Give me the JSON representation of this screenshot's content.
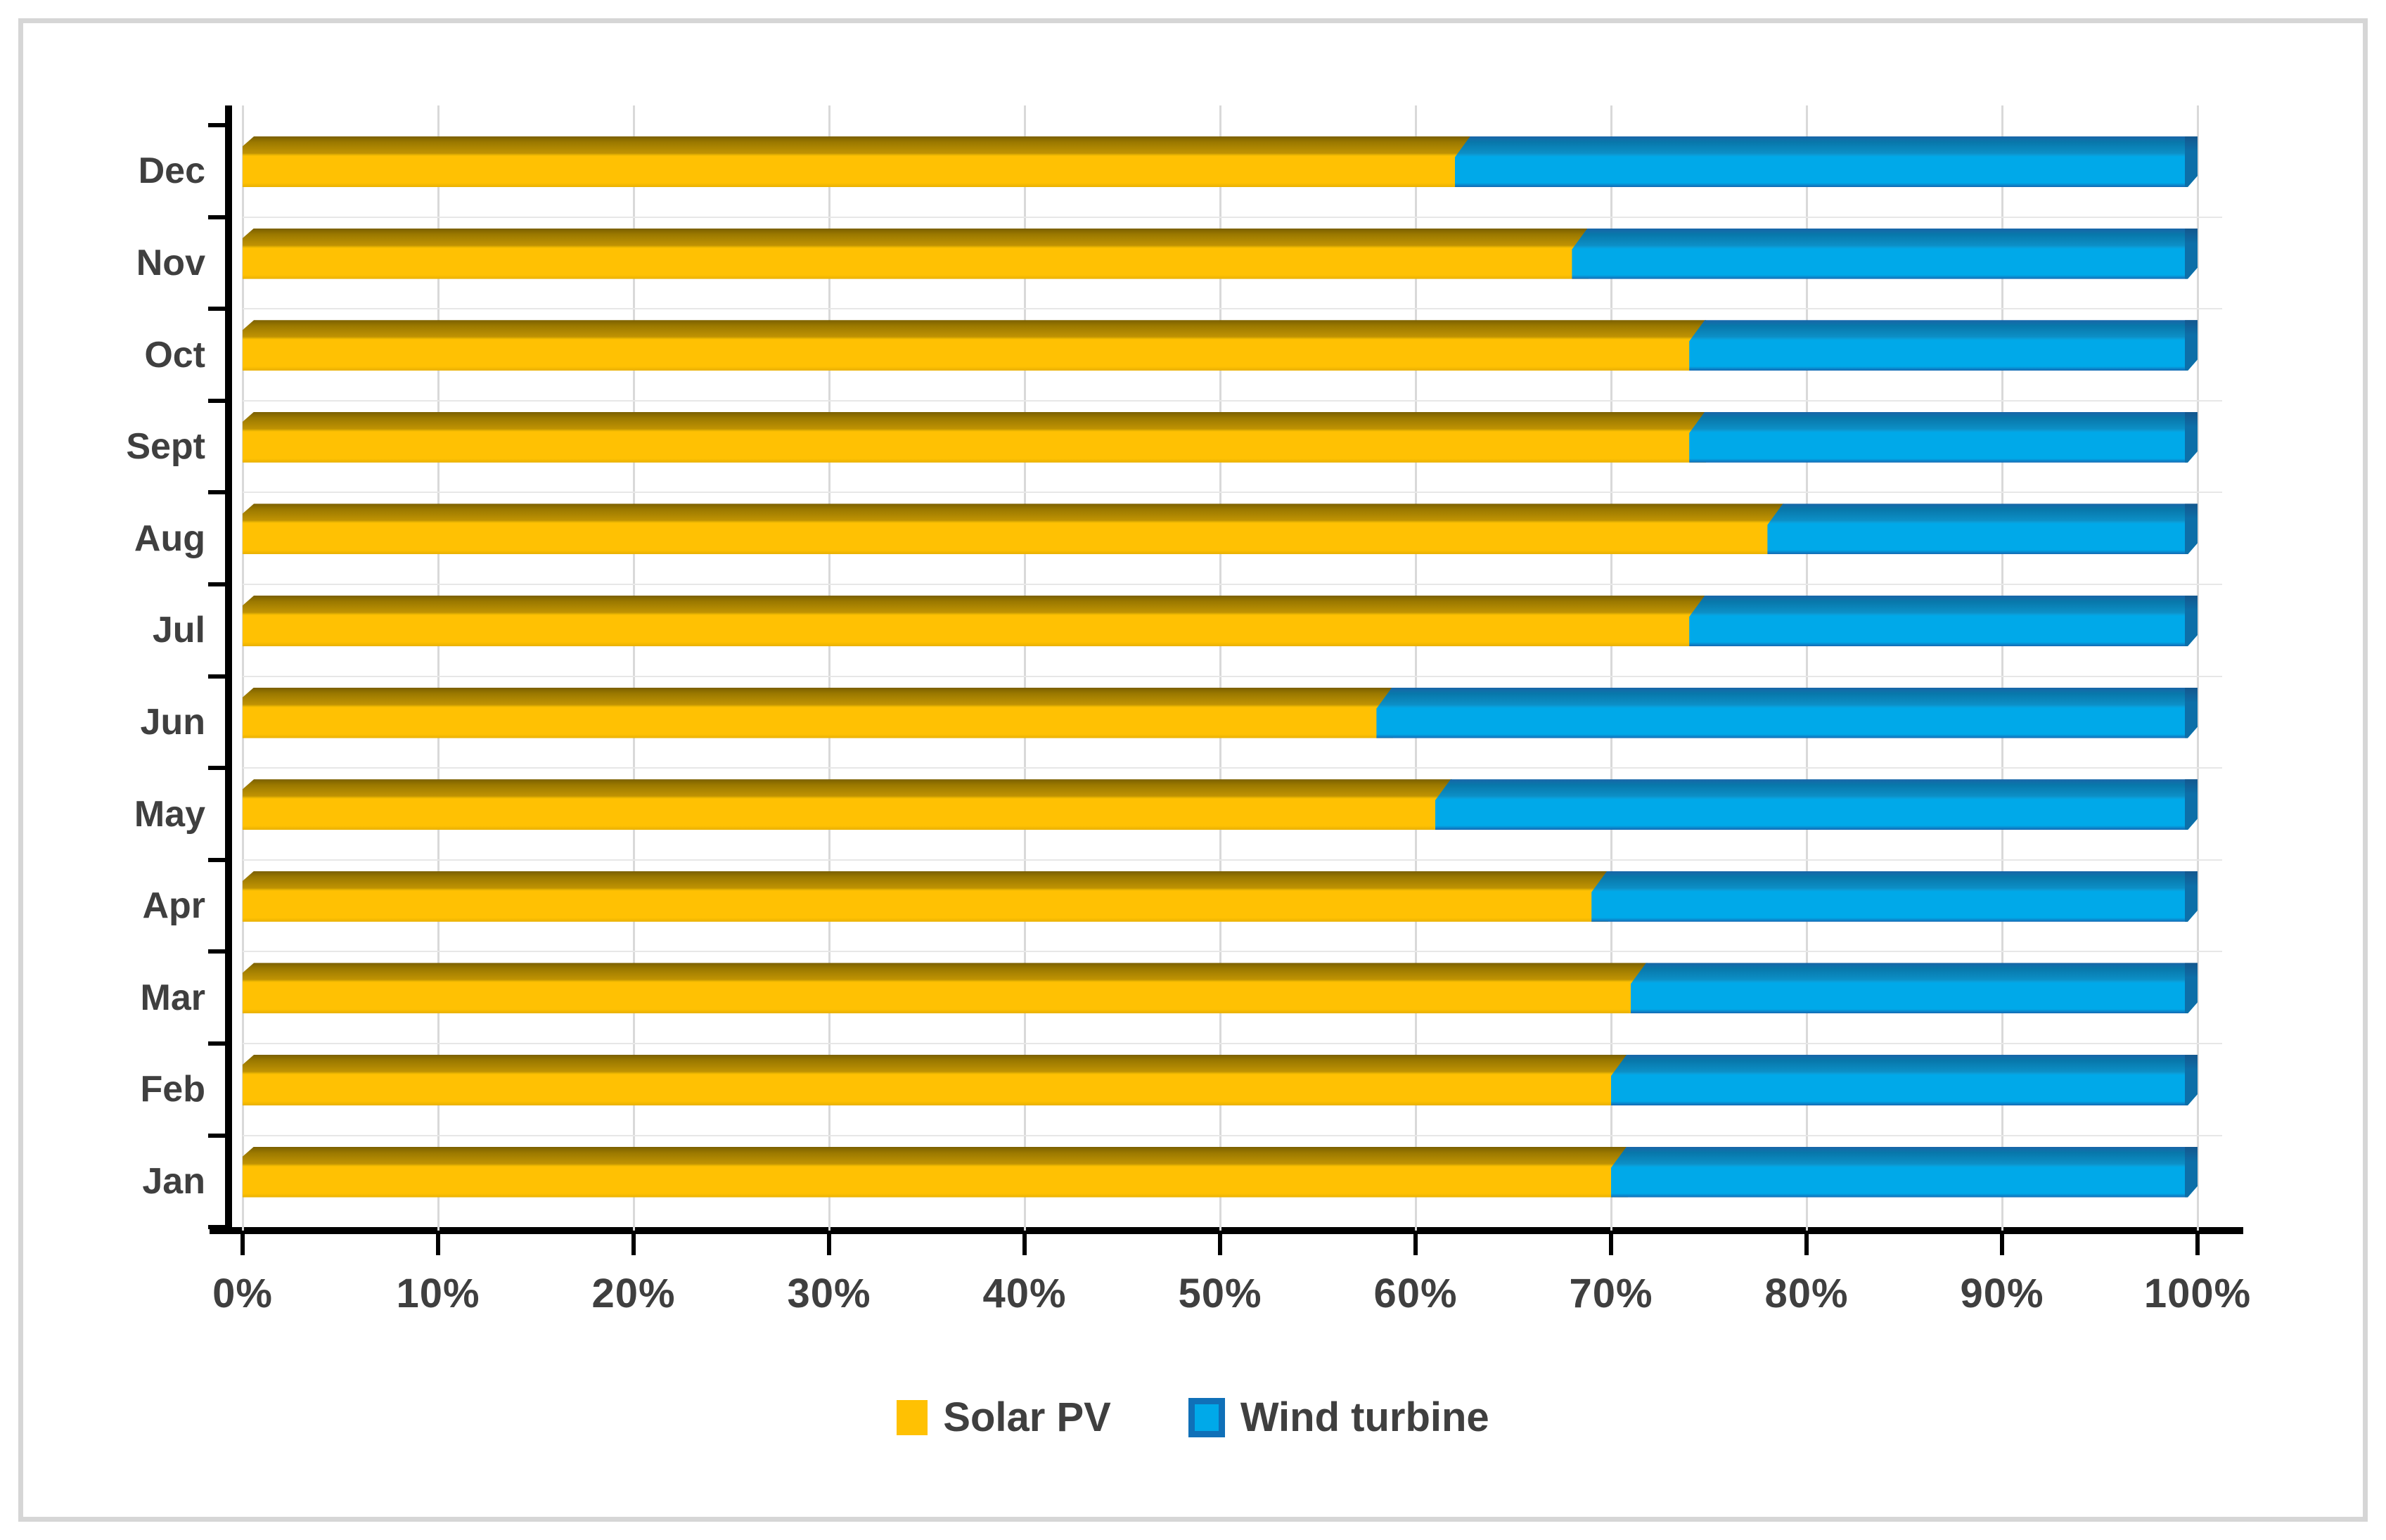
{
  "chart_data": {
    "type": "bar",
    "subtype": "horizontal-100-percent-stacked",
    "style": "excel-3d-bevel",
    "categories_top_to_bottom": [
      "Dec",
      "Nov",
      "Oct",
      "Sept",
      "Aug",
      "Jul",
      "Jun",
      "May",
      "Apr",
      "Mar",
      "Feb",
      "Jan"
    ],
    "series": [
      {
        "name": "Solar PV",
        "color": "#FFC103",
        "values_top_to_bottom": [
          62,
          68,
          74,
          74,
          78,
          74,
          58,
          61,
          69,
          71,
          70,
          70
        ]
      },
      {
        "name": "Wind turbine",
        "color": "#00A9E9",
        "values_top_to_bottom": [
          38,
          32,
          26,
          26,
          22,
          26,
          42,
          39,
          31,
          29,
          30,
          30
        ]
      }
    ],
    "x_tick_labels": [
      "0%",
      "10%",
      "20%",
      "30%",
      "40%",
      "50%",
      "60%",
      "70%",
      "80%",
      "90%",
      "100%"
    ],
    "xlim": [
      0,
      100
    ],
    "grid": true,
    "legend_position": "bottom",
    "title": "",
    "xlabel": "",
    "ylabel": ""
  },
  "legend": {
    "items": [
      {
        "label": "Solar PV",
        "color": "#FFC103"
      },
      {
        "label": "Wind turbine",
        "color": "#00A9E9"
      }
    ]
  },
  "colors": {
    "solar_front": "#FFC103",
    "solar_top_band": "#9A7800",
    "wind_front": "#00A9E9",
    "wind_top_band": "#0877AA",
    "wind_end_cap": "#0D6FA8",
    "axis": "#000000",
    "gridline": "#D9D9D9",
    "text": "#3F3F3F",
    "border": "#D6D6D6"
  }
}
